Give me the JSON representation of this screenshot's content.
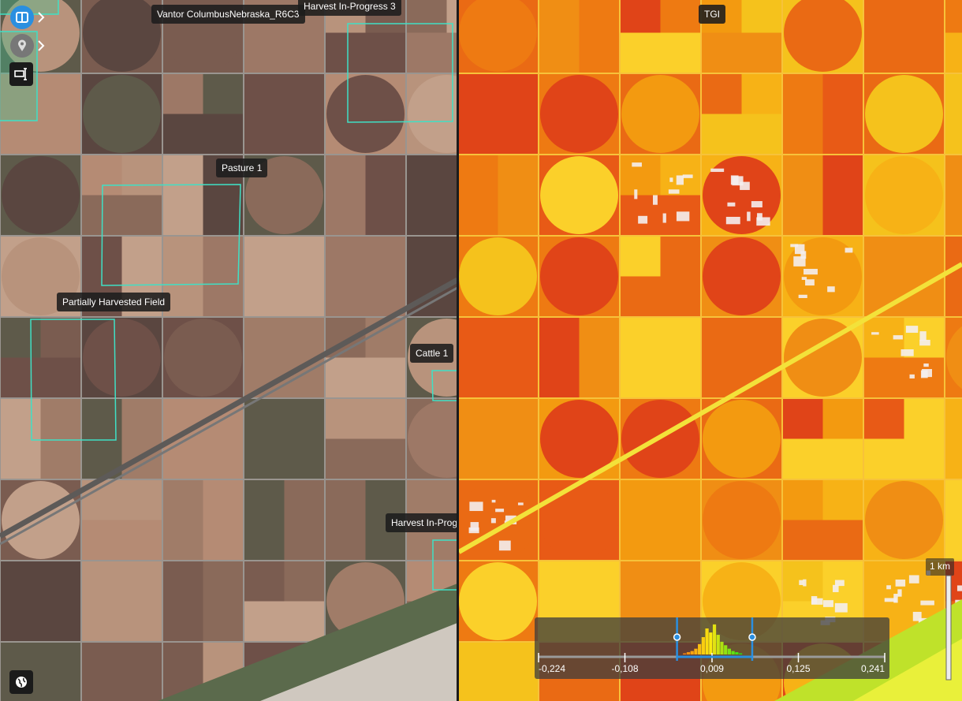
{
  "left_map": {
    "source_label": "Vantor ColumbusNebraska_R6C3",
    "annotations": [
      "Harvest In-Progress 3",
      "Pasture 1",
      "Partially Harvested Field",
      "Cattle 1",
      "Harvest In-Prog"
    ]
  },
  "right_map": {
    "index_label": "TGI",
    "scale_label": "1 km"
  },
  "histogram": {
    "xlim": [
      -0.224,
      0.241
    ],
    "xticks": [
      {
        "value": -0.224,
        "label": "-0,224"
      },
      {
        "value": -0.108,
        "label": "-0,108"
      },
      {
        "value": 0.009,
        "label": "0,009"
      },
      {
        "value": 0.125,
        "label": "0,125"
      },
      {
        "value": 0.241,
        "label": "0,241"
      }
    ],
    "selected_range": [
      -0.038,
      0.063
    ],
    "bins": [
      -0.03,
      -0.025,
      -0.02,
      -0.015,
      -0.01,
      -0.005,
      0,
      0.005,
      0.01,
      0.015,
      0.02,
      0.025,
      0.03,
      0.035,
      0.04,
      0.045,
      0.05
    ],
    "counts": [
      2,
      4,
      6,
      10,
      18,
      30,
      45,
      38,
      52,
      34,
      22,
      16,
      10,
      6,
      4,
      2
    ],
    "ylim": [
      0,
      60
    ]
  }
}
